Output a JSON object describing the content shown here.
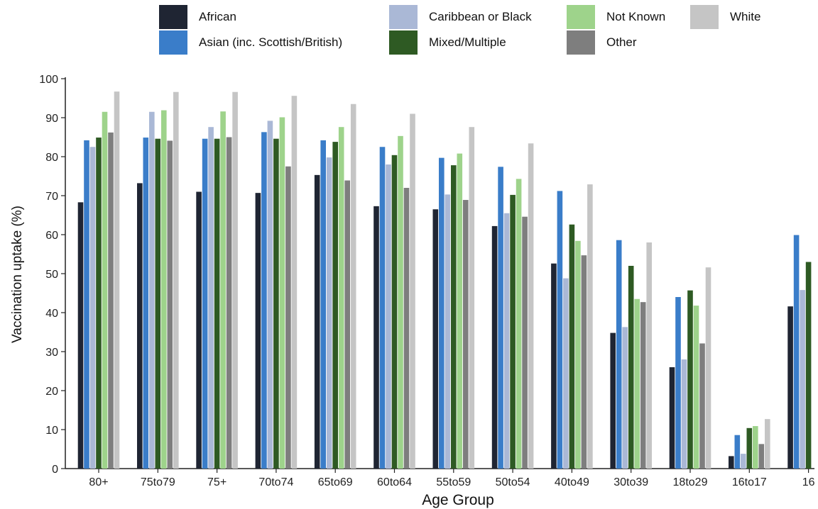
{
  "chart_data": {
    "type": "bar",
    "xlabel": "Age Group",
    "ylabel": "Vaccination uptake (%)",
    "ylim": [
      0,
      100
    ],
    "yticks": [
      0,
      10,
      20,
      30,
      40,
      50,
      60,
      70,
      80,
      90,
      100
    ],
    "grid": false,
    "legend_position": "top",
    "categories": [
      "80+",
      "75to79",
      "75+",
      "70to74",
      "65to69",
      "60to64",
      "55to59",
      "50to54",
      "40to49",
      "30to39",
      "18to29",
      "16to17",
      "16"
    ],
    "series": [
      {
        "name": "African",
        "color": "#1f2533",
        "values": [
          68.3,
          73.2,
          71.0,
          70.7,
          75.3,
          67.3,
          66.5,
          62.2,
          52.6,
          34.8,
          26.0,
          3.2,
          41.6
        ]
      },
      {
        "name": "Asian (inc. Scottish/British)",
        "color": "#3a7dc9",
        "values": [
          84.2,
          84.9,
          84.6,
          86.3,
          84.2,
          82.5,
          79.7,
          77.4,
          71.2,
          58.6,
          44.0,
          8.6,
          59.9
        ]
      },
      {
        "name": "Caribbean or Black",
        "color": "#aab8d6",
        "values": [
          82.5,
          91.5,
          87.6,
          89.2,
          79.8,
          78.0,
          70.3,
          65.5,
          48.8,
          36.3,
          28.0,
          3.8,
          45.8
        ]
      },
      {
        "name": "Mixed/Multiple",
        "color": "#2e5a23",
        "values": [
          84.9,
          84.6,
          84.6,
          84.6,
          83.8,
          80.4,
          77.8,
          70.2,
          62.6,
          52.0,
          45.7,
          10.4,
          53.0
        ]
      },
      {
        "name": "Not Known",
        "color": "#9ed38b",
        "values": [
          91.5,
          91.9,
          91.6,
          90.1,
          87.6,
          85.3,
          80.8,
          74.3,
          58.4,
          43.5,
          41.8,
          10.9,
          null
        ]
      },
      {
        "name": "Other",
        "color": "#7e7e7e",
        "values": [
          86.2,
          84.1,
          85.0,
          77.5,
          73.9,
          72.0,
          68.9,
          64.6,
          54.7,
          42.7,
          32.1,
          6.3,
          null
        ]
      },
      {
        "name": "White",
        "color": "#c5c5c5",
        "values": [
          96.7,
          96.6,
          96.6,
          95.6,
          93.5,
          91.0,
          87.6,
          83.4,
          72.9,
          58.0,
          51.6,
          12.7,
          null
        ]
      }
    ]
  }
}
